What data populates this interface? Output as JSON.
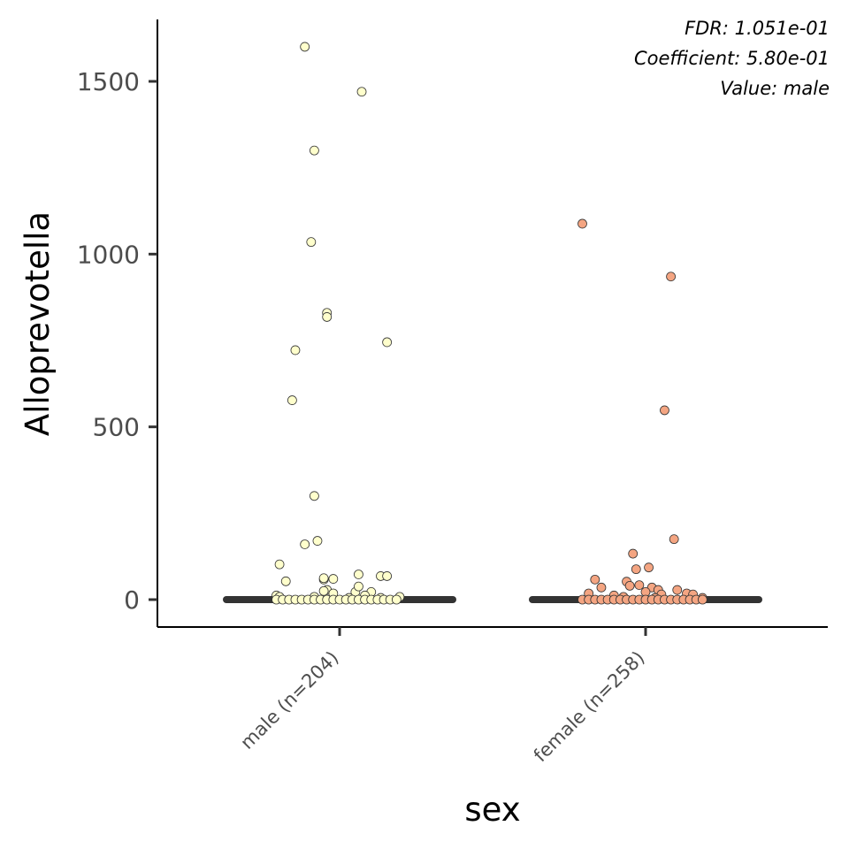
{
  "chart_data": {
    "type": "scatter",
    "xlabel": "sex",
    "ylabel": "Alloprevotella",
    "ylim": [
      -80,
      1670
    ],
    "yticks": [
      0,
      500,
      1000,
      1500
    ],
    "ytick_labels": [
      "0",
      "500",
      "1000",
      "1500"
    ],
    "categories": [
      "male (n=204)",
      "female (n=258)"
    ],
    "annotations": [
      "FDR: 1.051e-01",
      "Coefficient: 5.80e-01",
      "Value: male"
    ],
    "legend": "none",
    "grid": false,
    "series": [
      {
        "category": "male (n=204)",
        "color": "#ffffcc",
        "median": 0,
        "points": [
          [
            -0.11,
            1600
          ],
          [
            0.07,
            1470
          ],
          [
            -0.08,
            1300
          ],
          [
            -0.09,
            1035
          ],
          [
            -0.04,
            830
          ],
          [
            -0.04,
            818
          ],
          [
            0.15,
            745
          ],
          [
            -0.14,
            722
          ],
          [
            -0.15,
            577
          ],
          [
            -0.08,
            300
          ],
          [
            -0.07,
            170
          ],
          [
            -0.11,
            160
          ],
          [
            -0.19,
            102
          ],
          [
            -0.17,
            53
          ],
          [
            0.06,
            73
          ],
          [
            0.13,
            68
          ],
          [
            0.15,
            68
          ],
          [
            -0.05,
            58
          ],
          [
            -0.02,
            60
          ],
          [
            -0.05,
            62
          ],
          [
            -0.04,
            28
          ],
          [
            -0.05,
            25
          ],
          [
            0.05,
            22
          ],
          [
            0.06,
            38
          ],
          [
            0.1,
            22
          ],
          [
            -0.02,
            18
          ],
          [
            0.08,
            12
          ],
          [
            -0.2,
            12
          ],
          [
            -0.19,
            8
          ],
          [
            -0.08,
            8
          ],
          [
            0.19,
            8
          ],
          [
            0.03,
            5
          ],
          [
            0.13,
            5
          ],
          [
            -0.2,
            0
          ],
          [
            -0.18,
            0
          ],
          [
            -0.16,
            0
          ],
          [
            -0.14,
            0
          ],
          [
            -0.12,
            0
          ],
          [
            -0.1,
            0
          ],
          [
            -0.08,
            0
          ],
          [
            -0.06,
            0
          ],
          [
            -0.04,
            0
          ],
          [
            -0.02,
            0
          ],
          [
            0.0,
            0
          ],
          [
            0.02,
            0
          ],
          [
            0.04,
            0
          ],
          [
            0.06,
            0
          ],
          [
            0.08,
            0
          ],
          [
            0.1,
            0
          ],
          [
            0.12,
            0
          ],
          [
            0.14,
            0
          ],
          [
            0.16,
            0
          ],
          [
            0.18,
            0
          ]
        ]
      },
      {
        "category": "female (n=258)",
        "color": "#f4a582",
        "median": 0,
        "points": [
          [
            -0.2,
            1088
          ],
          [
            0.08,
            935
          ],
          [
            0.06,
            548
          ],
          [
            0.09,
            175
          ],
          [
            -0.04,
            133
          ],
          [
            -0.03,
            88
          ],
          [
            0.01,
            93
          ],
          [
            -0.16,
            58
          ],
          [
            -0.06,
            52
          ],
          [
            -0.05,
            40
          ],
          [
            -0.02,
            42
          ],
          [
            0.02,
            35
          ],
          [
            0.04,
            28
          ],
          [
            -0.14,
            35
          ],
          [
            0.1,
            28
          ],
          [
            -0.18,
            18
          ],
          [
            0.0,
            22
          ],
          [
            0.05,
            15
          ],
          [
            0.13,
            18
          ],
          [
            0.15,
            15
          ],
          [
            -0.1,
            12
          ],
          [
            -0.07,
            8
          ],
          [
            0.03,
            5
          ],
          [
            0.18,
            5
          ],
          [
            -0.2,
            0
          ],
          [
            -0.18,
            0
          ],
          [
            -0.16,
            0
          ],
          [
            -0.14,
            0
          ],
          [
            -0.12,
            0
          ],
          [
            -0.1,
            0
          ],
          [
            -0.08,
            0
          ],
          [
            -0.06,
            0
          ],
          [
            -0.04,
            0
          ],
          [
            -0.02,
            0
          ],
          [
            0.0,
            0
          ],
          [
            0.02,
            0
          ],
          [
            0.04,
            0
          ],
          [
            0.06,
            0
          ],
          [
            0.08,
            0
          ],
          [
            0.1,
            0
          ],
          [
            0.12,
            0
          ],
          [
            0.14,
            0
          ],
          [
            0.16,
            0
          ],
          [
            0.18,
            0
          ]
        ]
      }
    ]
  }
}
